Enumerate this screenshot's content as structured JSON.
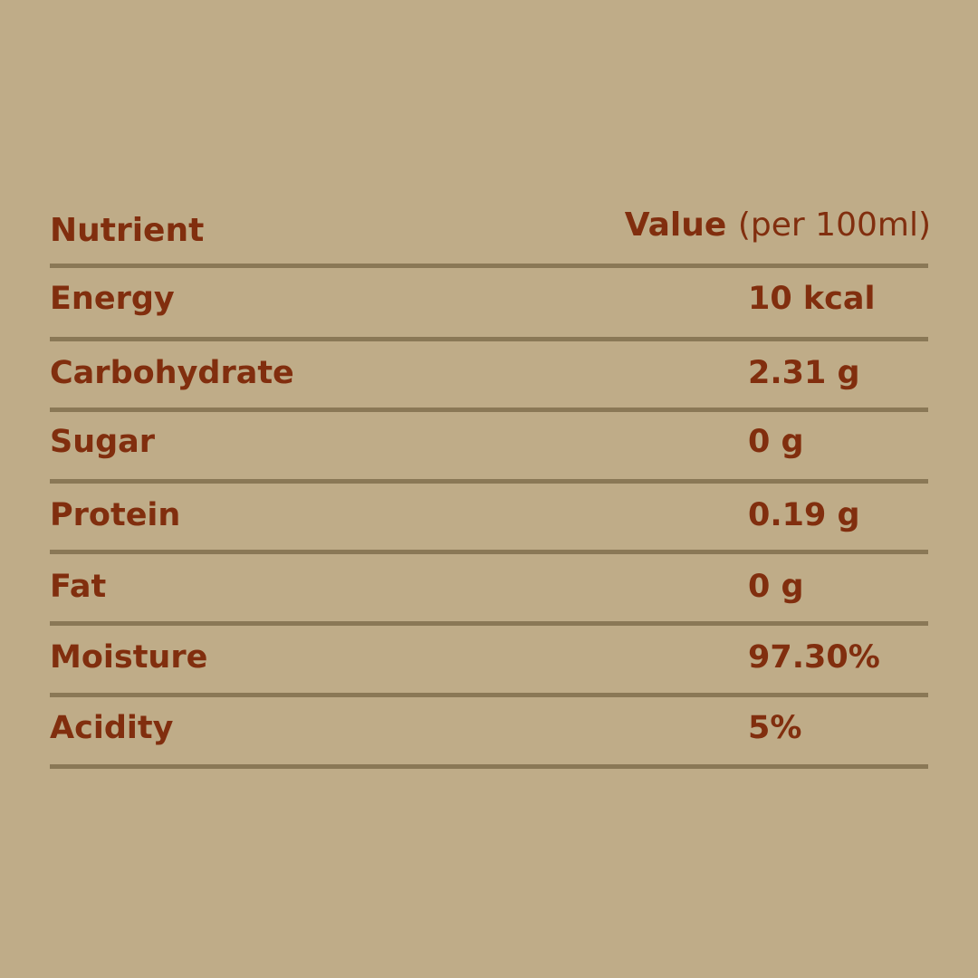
{
  "header": {
    "nutrient": "Nutrient",
    "value": "Value",
    "unit": "(per 100ml)"
  },
  "rows": [
    {
      "name": "Energy",
      "value": "10 kcal"
    },
    {
      "name": "Carbohydrate",
      "value": "2.31 g"
    },
    {
      "name": "Sugar",
      "value": "0 g"
    },
    {
      "name": "Protein",
      "value": "0.19 g"
    },
    {
      "name": "Fat",
      "value": "0 g"
    },
    {
      "name": "Moisture",
      "value": "97.30%"
    },
    {
      "name": "Acidity",
      "value": "5%"
    }
  ],
  "colors": {
    "background": "#bfac88",
    "text": "#812e0e",
    "divider": "#8a7856"
  }
}
